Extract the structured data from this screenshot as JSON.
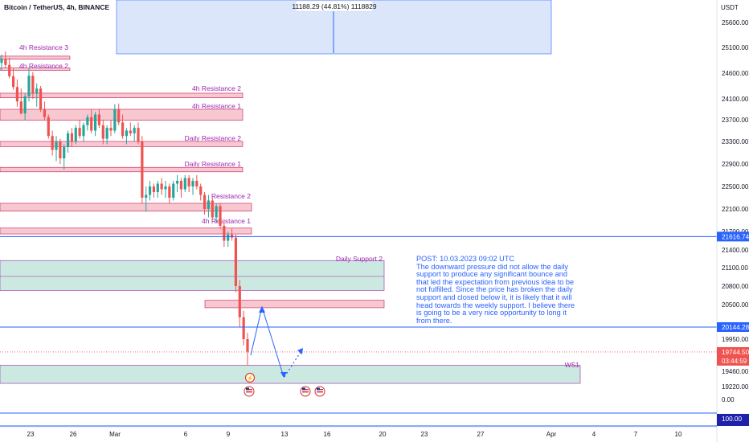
{
  "header": {
    "symbol": "Bitcoin / TetherUS, 4h, BINANCE"
  },
  "measure_label": "11188.29 (44.81%) 1118829",
  "post_note": "POST: 10.03.2023 09:02 UTC\nThe downward pressure did not allow the daily support to produce any significant bounce and that led the expectation from previous idea to be not fulfilled. Since the price has broken the daily support and closed below it, it is likely that it will head towards the weekly support. I believe there is going to be a very nice opportunity to long it from there.",
  "colors": {
    "candle_up": "#26a69a",
    "candle_down": "#ef5350",
    "resistance_fill": "#f8c8d0",
    "resistance_border": "#c2185b",
    "support_fill": "#cce9e1",
    "support_border": "#9c27b0",
    "measure_fill": "#dbe6fa",
    "line_blue": "#2962ff",
    "label_purple": "#9c27b0"
  },
  "chart_data": {
    "type": "candlestick",
    "title": "Bitcoin / TetherUS, 4h, BINANCE",
    "price_axis_label": "USDT",
    "x_ticks": [
      "23",
      "26",
      "Mar",
      "6",
      "9",
      "13",
      "16",
      "20",
      "23",
      "27",
      "Apr",
      "4",
      "7",
      "10"
    ],
    "y_ticks": [
      25600,
      25100,
      24600,
      24100,
      23700,
      23300,
      22900,
      22500,
      22100,
      21700,
      21400,
      21100,
      20800,
      20500,
      19950,
      19460,
      19220
    ],
    "ylim": [
      19000,
      25900
    ],
    "price_markers": [
      {
        "value": 21616.74,
        "label": "21616.74"
      },
      {
        "value": 20144.28,
        "label": "20144.28"
      },
      {
        "value": 19744.5,
        "label": "19744.50",
        "countdown": "03:44:59"
      }
    ],
    "zones": [
      {
        "label": "4h Resistance 3",
        "type": "resistance",
        "range": [
          24870,
          24930
        ]
      },
      {
        "label": "4h Resistance 2",
        "type": "resistance",
        "range": [
          24660,
          24700
        ]
      },
      {
        "label": "4h Resistance 2",
        "type": "resistance",
        "range": [
          24120,
          24210
        ]
      },
      {
        "label": "4h Resistance 1",
        "type": "resistance",
        "range": [
          23690,
          23900
        ]
      },
      {
        "label": "Daily Resistance 2",
        "type": "resistance",
        "range": [
          23210,
          23300
        ]
      },
      {
        "label": "Daily Resistance 1",
        "type": "resistance",
        "range": [
          22760,
          22840
        ]
      },
      {
        "label": "Resistance 2",
        "type": "resistance",
        "range": [
          22060,
          22200
        ]
      },
      {
        "label": "4h Resistance 1",
        "type": "resistance",
        "range": [
          21660,
          21760
        ]
      },
      {
        "label": "Daily Support 2",
        "type": "support",
        "range": [
          20730,
          21220
        ]
      },
      {
        "label": "",
        "type": "resistance",
        "range": [
          20450,
          20570
        ]
      },
      {
        "label": "WS1",
        "type": "support",
        "range": [
          19270,
          19550
        ]
      }
    ],
    "candles": [
      [
        24800,
        24960,
        24650,
        24880
      ],
      [
        24880,
        25020,
        24700,
        24760
      ],
      [
        24760,
        24900,
        24500,
        24540
      ],
      [
        24540,
        24700,
        24280,
        24330
      ],
      [
        24330,
        24480,
        23950,
        24050
      ],
      [
        24050,
        24300,
        23800,
        23820
      ],
      [
        23820,
        24200,
        23700,
        24150
      ],
      [
        24150,
        24700,
        24050,
        24550
      ],
      [
        24550,
        24620,
        24100,
        24200
      ],
      [
        24200,
        24400,
        23950,
        24300
      ],
      [
        24300,
        24350,
        23850,
        23900
      ],
      [
        23900,
        24050,
        23700,
        23750
      ],
      [
        23750,
        23800,
        23350,
        23400
      ],
      [
        23400,
        23500,
        23050,
        23150
      ],
      [
        23150,
        23400,
        22950,
        23300
      ],
      [
        23300,
        23350,
        22900,
        23000
      ],
      [
        23000,
        23250,
        22800,
        23200
      ],
      [
        23200,
        23500,
        23100,
        23450
      ],
      [
        23450,
        23550,
        23200,
        23300
      ],
      [
        23300,
        23600,
        23250,
        23550
      ],
      [
        23550,
        23700,
        23350,
        23400
      ],
      [
        23400,
        23650,
        23300,
        23600
      ],
      [
        23600,
        23800,
        23500,
        23750
      ],
      [
        23750,
        23900,
        23450,
        23500
      ],
      [
        23500,
        23850,
        23400,
        23800
      ],
      [
        23800,
        23900,
        23550,
        23600
      ],
      [
        23600,
        23700,
        23250,
        23350
      ],
      [
        23350,
        23600,
        23250,
        23550
      ],
      [
        23550,
        23700,
        23400,
        23500
      ],
      [
        23500,
        24000,
        23450,
        23900
      ],
      [
        23900,
        24010,
        23600,
        23650
      ],
      [
        23650,
        23800,
        23350,
        23400
      ],
      [
        23400,
        23550,
        23250,
        23500
      ],
      [
        23500,
        23650,
        23400,
        23450
      ],
      [
        23450,
        23600,
        23300,
        23550
      ],
      [
        23550,
        23650,
        23250,
        23300
      ],
      [
        23300,
        23400,
        22200,
        22300
      ],
      [
        22300,
        22500,
        22050,
        22350
      ],
      [
        22350,
        22600,
        22250,
        22500
      ],
      [
        22500,
        22550,
        22300,
        22400
      ],
      [
        22400,
        22600,
        22300,
        22550
      ],
      [
        22550,
        22650,
        22350,
        22450
      ],
      [
        22450,
        22600,
        22300,
        22500
      ],
      [
        22500,
        22550,
        22200,
        22300
      ],
      [
        22300,
        22600,
        22250,
        22550
      ],
      [
        22550,
        22700,
        22400,
        22600
      ],
      [
        22600,
        22650,
        22300,
        22450
      ],
      [
        22450,
        22700,
        22400,
        22650
      ],
      [
        22650,
        22700,
        22400,
        22500
      ],
      [
        22500,
        22650,
        22350,
        22600
      ],
      [
        22600,
        22700,
        22450,
        22500
      ],
      [
        22500,
        22550,
        22250,
        22350
      ],
      [
        22350,
        22400,
        22000,
        22100
      ],
      [
        22100,
        22350,
        21950,
        22250
      ],
      [
        22250,
        22300,
        21900,
        21950
      ],
      [
        21950,
        22200,
        21850,
        22150
      ],
      [
        22150,
        22200,
        21750,
        21800
      ],
      [
        21800,
        21900,
        21450,
        21550
      ],
      [
        21550,
        21700,
        21450,
        21650
      ],
      [
        21650,
        21750,
        21550,
        21600
      ],
      [
        21600,
        21650,
        20700,
        20800
      ],
      [
        20800,
        20900,
        20150,
        20300
      ],
      [
        20300,
        20400,
        19850,
        19950
      ],
      [
        19950,
        20050,
        19550,
        19750
      ]
    ],
    "projection": {
      "solid_path": [
        [
          "Mar 9",
          19850
        ],
        [
          "Mar 11",
          20600
        ],
        [
          "Mar 13",
          19350
        ]
      ],
      "dotted_path": [
        [
          "Mar 13",
          19350
        ],
        [
          "Mar 14",
          19800
        ]
      ]
    },
    "indicator_axis": {
      "ticks": [
        0.0
      ],
      "marker": "100.00"
    }
  }
}
